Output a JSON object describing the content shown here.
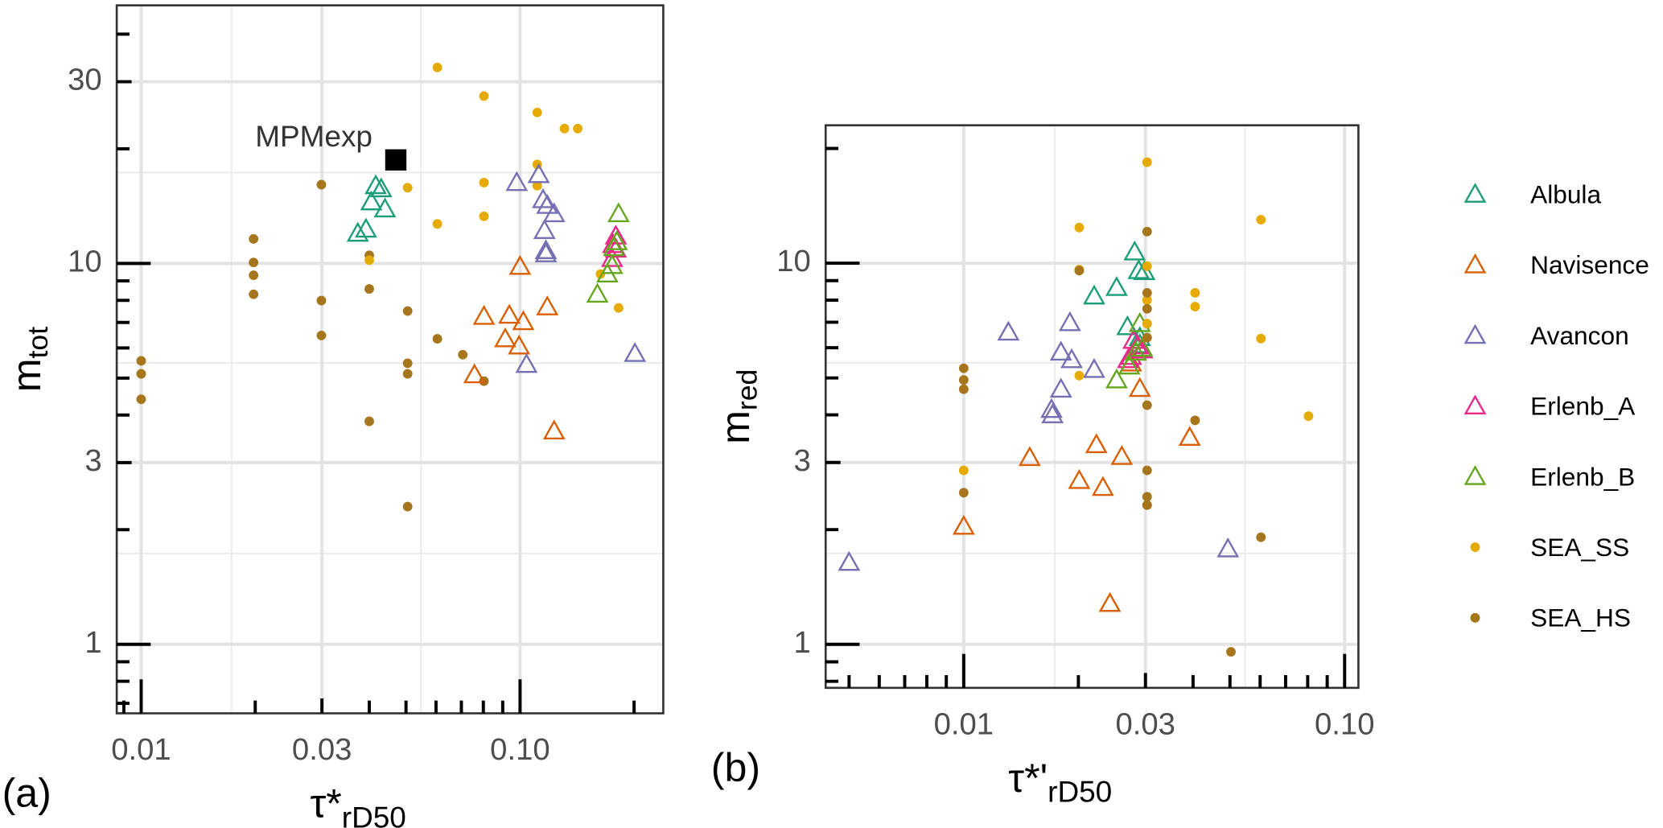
{
  "chart_data": [
    {
      "type": "scatter",
      "panel_label": "(a)",
      "xlabel": "τ*",
      "xlabel_sub": "rD50",
      "ylabel": "m",
      "ylabel_sub": "tot",
      "log_x": true,
      "log_y": true,
      "grid": true,
      "xlim": [
        0.00862,
        0.2388
      ],
      "ylim": [
        0.659,
        47.6
      ],
      "xticks": [
        {
          "value": 0.01,
          "label": "0.01"
        },
        {
          "value": 0.03,
          "label": "0.03"
        },
        {
          "value": 0.1,
          "label": "0.10"
        }
      ],
      "yticks": [
        1,
        3,
        10,
        30
      ],
      "x_minor_ticks": [
        0.009,
        0.02,
        0.04,
        0.05,
        0.06,
        0.07,
        0.08,
        0.09,
        0.2
      ],
      "y_minor_ticks": [
        0.7,
        0.8,
        0.9,
        2,
        4,
        5,
        6,
        7,
        8,
        9,
        20,
        40
      ],
      "series": [
        {
          "name": "SEA_HS",
          "color": "#a6761d",
          "marker": "circle",
          "x": [
            0.01,
            0.01,
            0.01,
            0.0198,
            0.0198,
            0.0198,
            0.0198,
            0.0299,
            0.0299,
            0.0299,
            0.04,
            0.04,
            0.04,
            0.0505,
            0.0505,
            0.0505,
            0.0505,
            0.0605,
            0.0706,
            0.0803
          ],
          "values": [
            5.55,
            5.13,
            4.4,
            11.6,
            10.06,
            9.31,
            8.3,
            16.1,
            7.99,
            6.47,
            10.5,
            8.57,
            3.85,
            7.5,
            5.47,
            5.13,
            2.3,
            6.34,
            5.76,
            4.91
          ]
        },
        {
          "name": "SEA_SS",
          "color": "#e6ab02",
          "marker": "circle",
          "x": [
            0.0605,
            0.0803,
            0.111,
            0.131,
            0.142,
            0.111,
            0.0505,
            0.0803,
            0.111,
            0.0605,
            0.0803,
            0.04,
            0.163,
            0.182
          ],
          "values": [
            32.7,
            27.5,
            24.9,
            22.6,
            22.6,
            18.2,
            15.8,
            16.3,
            16.0,
            12.7,
            13.3,
            10.2,
            9.38,
            7.64
          ]
        },
        {
          "name": "Albula",
          "color": "#1b9e77",
          "marker": "triangle",
          "x": [
            0.0416,
            0.043,
            0.044,
            0.0373,
            0.0392,
            0.0405
          ],
          "values": [
            16.0,
            15.7,
            13.9,
            12.0,
            12.3,
            14.5
          ]
        },
        {
          "name": "Navisence",
          "color": "#d95f02",
          "marker": "triangle",
          "x": [
            0.1,
            0.0803,
            0.0937,
            0.102,
            0.0914,
            0.0994,
            0.118,
            0.0758,
            0.123
          ],
          "values": [
            9.82,
            7.26,
            7.31,
            7.03,
            6.34,
            6.07,
            7.69,
            5.1,
            3.63
          ]
        },
        {
          "name": "Avancon",
          "color": "#7570b3",
          "marker": "triangle",
          "x": [
            0.098,
            0.112,
            0.115,
            0.118,
            0.123,
            0.116,
            0.117,
            0.117,
            0.104,
            0.201
          ],
          "values": [
            16.3,
            17.1,
            14.7,
            14.2,
            13.5,
            12.2,
            10.8,
            10.6,
            5.43,
            5.8
          ]
        },
        {
          "name": "Erlenb_A",
          "color": "#e7298a",
          "marker": "triangle",
          "x": [
            0.179,
            0.176,
            0.175,
            0.179
          ],
          "values": [
            11.8,
            11.2,
            10.3,
            10.9
          ]
        },
        {
          "name": "Erlenb_B",
          "color": "#66a61e",
          "marker": "triangle",
          "x": [
            0.182,
            0.18,
            0.175,
            0.17,
            0.16,
            0.177
          ],
          "values": [
            13.5,
            11.4,
            9.87,
            9.38,
            8.3,
            11.0
          ]
        },
        {
          "name": "MPMexp",
          "color": "#000000",
          "marker": "square",
          "x": [
            0.047
          ],
          "values": [
            18.7
          ]
        }
      ]
    },
    {
      "type": "scatter",
      "panel_label": "(b)",
      "xlabel": "τ*'",
      "xlabel_sub": "rD50",
      "ylabel": "m",
      "ylabel_sub": "red",
      "log_x": true,
      "log_y": true,
      "grid": true,
      "legend": "right",
      "xlim": [
        0.00434,
        0.1087
      ],
      "ylim": [
        0.769,
        23.0
      ],
      "xticks": [
        {
          "value": 0.01,
          "label": "0.01"
        },
        {
          "value": 0.03,
          "label": "0.03"
        },
        {
          "value": 0.1,
          "label": "0.10"
        }
      ],
      "yticks": [
        1,
        3,
        10
      ],
      "x_minor_ticks": [
        0.005,
        0.006,
        0.007,
        0.008,
        0.009,
        0.02,
        0.04,
        0.05,
        0.06,
        0.07,
        0.08,
        0.09
      ],
      "y_minor_ticks": [
        0.8,
        0.9,
        2,
        4,
        5,
        6,
        7,
        8,
        9,
        20
      ],
      "series": [
        {
          "name": "Albula",
          "color": "#1b9e77",
          "marker": "triangle",
          "x": [
            0.0281,
            0.0288,
            0.0298,
            0.0252,
            0.022,
            0.0269,
            0.029,
            0.029
          ],
          "values": [
            10.7,
            9.56,
            9.5,
            8.63,
            8.2,
            6.81,
            6.38,
            6.11
          ]
        },
        {
          "name": "Navisence",
          "color": "#d95f02",
          "marker": "triangle",
          "x": [
            0.01,
            0.0149,
            0.0201,
            0.0232,
            0.026,
            0.0223,
            0.029,
            0.0392,
            0.0242,
            0.0275
          ],
          "values": [
            2.04,
            3.09,
            2.69,
            2.58,
            3.11,
            3.34,
            4.69,
            3.49,
            1.28,
            5.47
          ]
        },
        {
          "name": "Avancon",
          "color": "#7570b3",
          "marker": "triangle",
          "x": [
            0.005,
            0.0131,
            0.019,
            0.018,
            0.0192,
            0.022,
            0.018,
            0.017,
            0.0171,
            0.0494
          ],
          "values": [
            1.64,
            6.59,
            6.98,
            5.84,
            5.58,
            5.26,
            4.67,
            4.13,
            4.0,
            1.78
          ]
        },
        {
          "name": "Erlenb_A",
          "color": "#e7298a",
          "marker": "triangle",
          "x": [
            0.0279,
            0.0286,
            0.0294,
            0.0275,
            0.027
          ],
          "values": [
            6.27,
            6.07,
            5.92,
            5.69,
            5.58
          ]
        },
        {
          "name": "Erlenb_B",
          "color": "#66a61e",
          "marker": "triangle",
          "x": [
            0.029,
            0.0294,
            0.0283,
            0.0272,
            0.0252
          ],
          "values": [
            6.94,
            5.98,
            5.84,
            5.37,
            4.94
          ]
        },
        {
          "name": "SEA_SS",
          "color": "#e6ab02",
          "marker": "circle",
          "x": [
            0.0303,
            0.0201,
            0.0201,
            0.0201,
            0.0303,
            0.0303,
            0.0303,
            0.0405,
            0.0405,
            0.0603,
            0.0603,
            0.0804,
            0.01
          ],
          "values": [
            18.4,
            12.4,
            9.62,
            5.07,
            9.82,
            8.0,
            6.94,
            8.36,
            7.69,
            13.0,
            6.34,
            3.97,
            2.86
          ]
        },
        {
          "name": "SEA_HS",
          "color": "#a6761d",
          "marker": "circle",
          "x": [
            0.01,
            0.01,
            0.01,
            0.01,
            0.0201,
            0.0303,
            0.0303,
            0.0303,
            0.0303,
            0.0303,
            0.0303,
            0.0303,
            0.0303,
            0.0303,
            0.0405,
            0.0603,
            0.0503
          ],
          "values": [
            5.3,
            4.94,
            4.67,
            2.5,
            9.56,
            12.1,
            8.36,
            7.59,
            6.38,
            4.24,
            2.86,
            2.44,
            2.32,
            2.32,
            3.87,
            1.91,
            0.956
          ]
        }
      ]
    }
  ]
}
